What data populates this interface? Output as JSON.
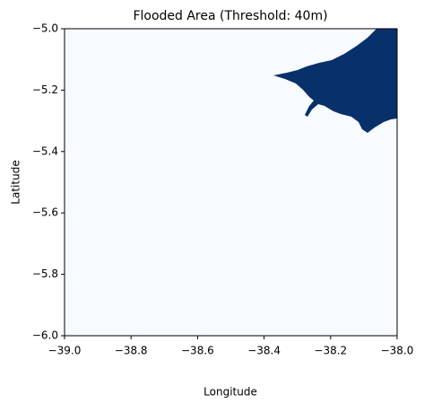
{
  "chart_data": {
    "type": "image",
    "title": "Flooded Area (Threshold: 40m)",
    "x_label": "Longitude",
    "y_label": "Latitude",
    "xlim": [
      -39.0,
      -38.0
    ],
    "ylim": [
      -6.0,
      -5.0
    ],
    "xticks": [
      {
        "value": -39.0,
        "label": "−39.0"
      },
      {
        "value": -38.8,
        "label": "−38.8"
      },
      {
        "value": -38.6,
        "label": "−38.6"
      },
      {
        "value": -38.4,
        "label": "−38.4"
      },
      {
        "value": -38.2,
        "label": "−38.2"
      },
      {
        "value": -38.0,
        "label": "−38.0"
      }
    ],
    "yticks": [
      {
        "value": -6.0,
        "label": "−6.0"
      },
      {
        "value": -5.8,
        "label": "−5.8"
      },
      {
        "value": -5.6,
        "label": "−5.6"
      },
      {
        "value": -5.4,
        "label": "−5.4"
      },
      {
        "value": -5.2,
        "label": "−5.2"
      },
      {
        "value": -5.0,
        "label": "−5.0"
      }
    ],
    "colors": [
      "#f7fbff",
      "#08306b"
    ]
  }
}
